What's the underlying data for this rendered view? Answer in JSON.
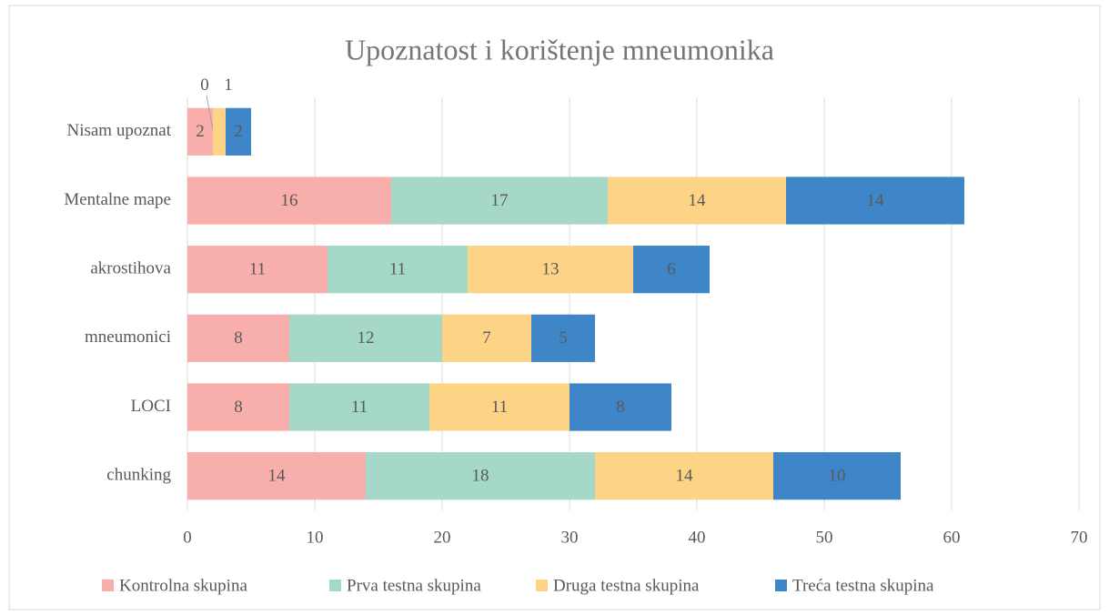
{
  "chart_data": {
    "type": "stacked-barh",
    "title": "Upoznatost i korištenje mneumonika",
    "categories": [
      "Nisam upoznat",
      "Mentalne mape",
      "akrostihova",
      "mneumonici",
      "LOCI",
      "chunking"
    ],
    "series": [
      {
        "name": "Kontrolna skupina",
        "color": "#f8aeab",
        "values": [
          2,
          16,
          11,
          8,
          8,
          14
        ]
      },
      {
        "name": "Prva testna skupina",
        "color": "#a5d8c9",
        "values": [
          0,
          17,
          11,
          12,
          11,
          18
        ]
      },
      {
        "name": "Druga testna skupina",
        "color": "#fdd486",
        "values": [
          1,
          14,
          13,
          7,
          11,
          14
        ]
      },
      {
        "name": "Treća testna skupina",
        "color": "#3f86c8",
        "values": [
          2,
          14,
          6,
          5,
          8,
          10
        ]
      }
    ],
    "xlim": [
      0,
      70
    ],
    "xticks": [
      0,
      10,
      20,
      30,
      40,
      50,
      60,
      70
    ],
    "grid": true,
    "legend": "bottom"
  }
}
